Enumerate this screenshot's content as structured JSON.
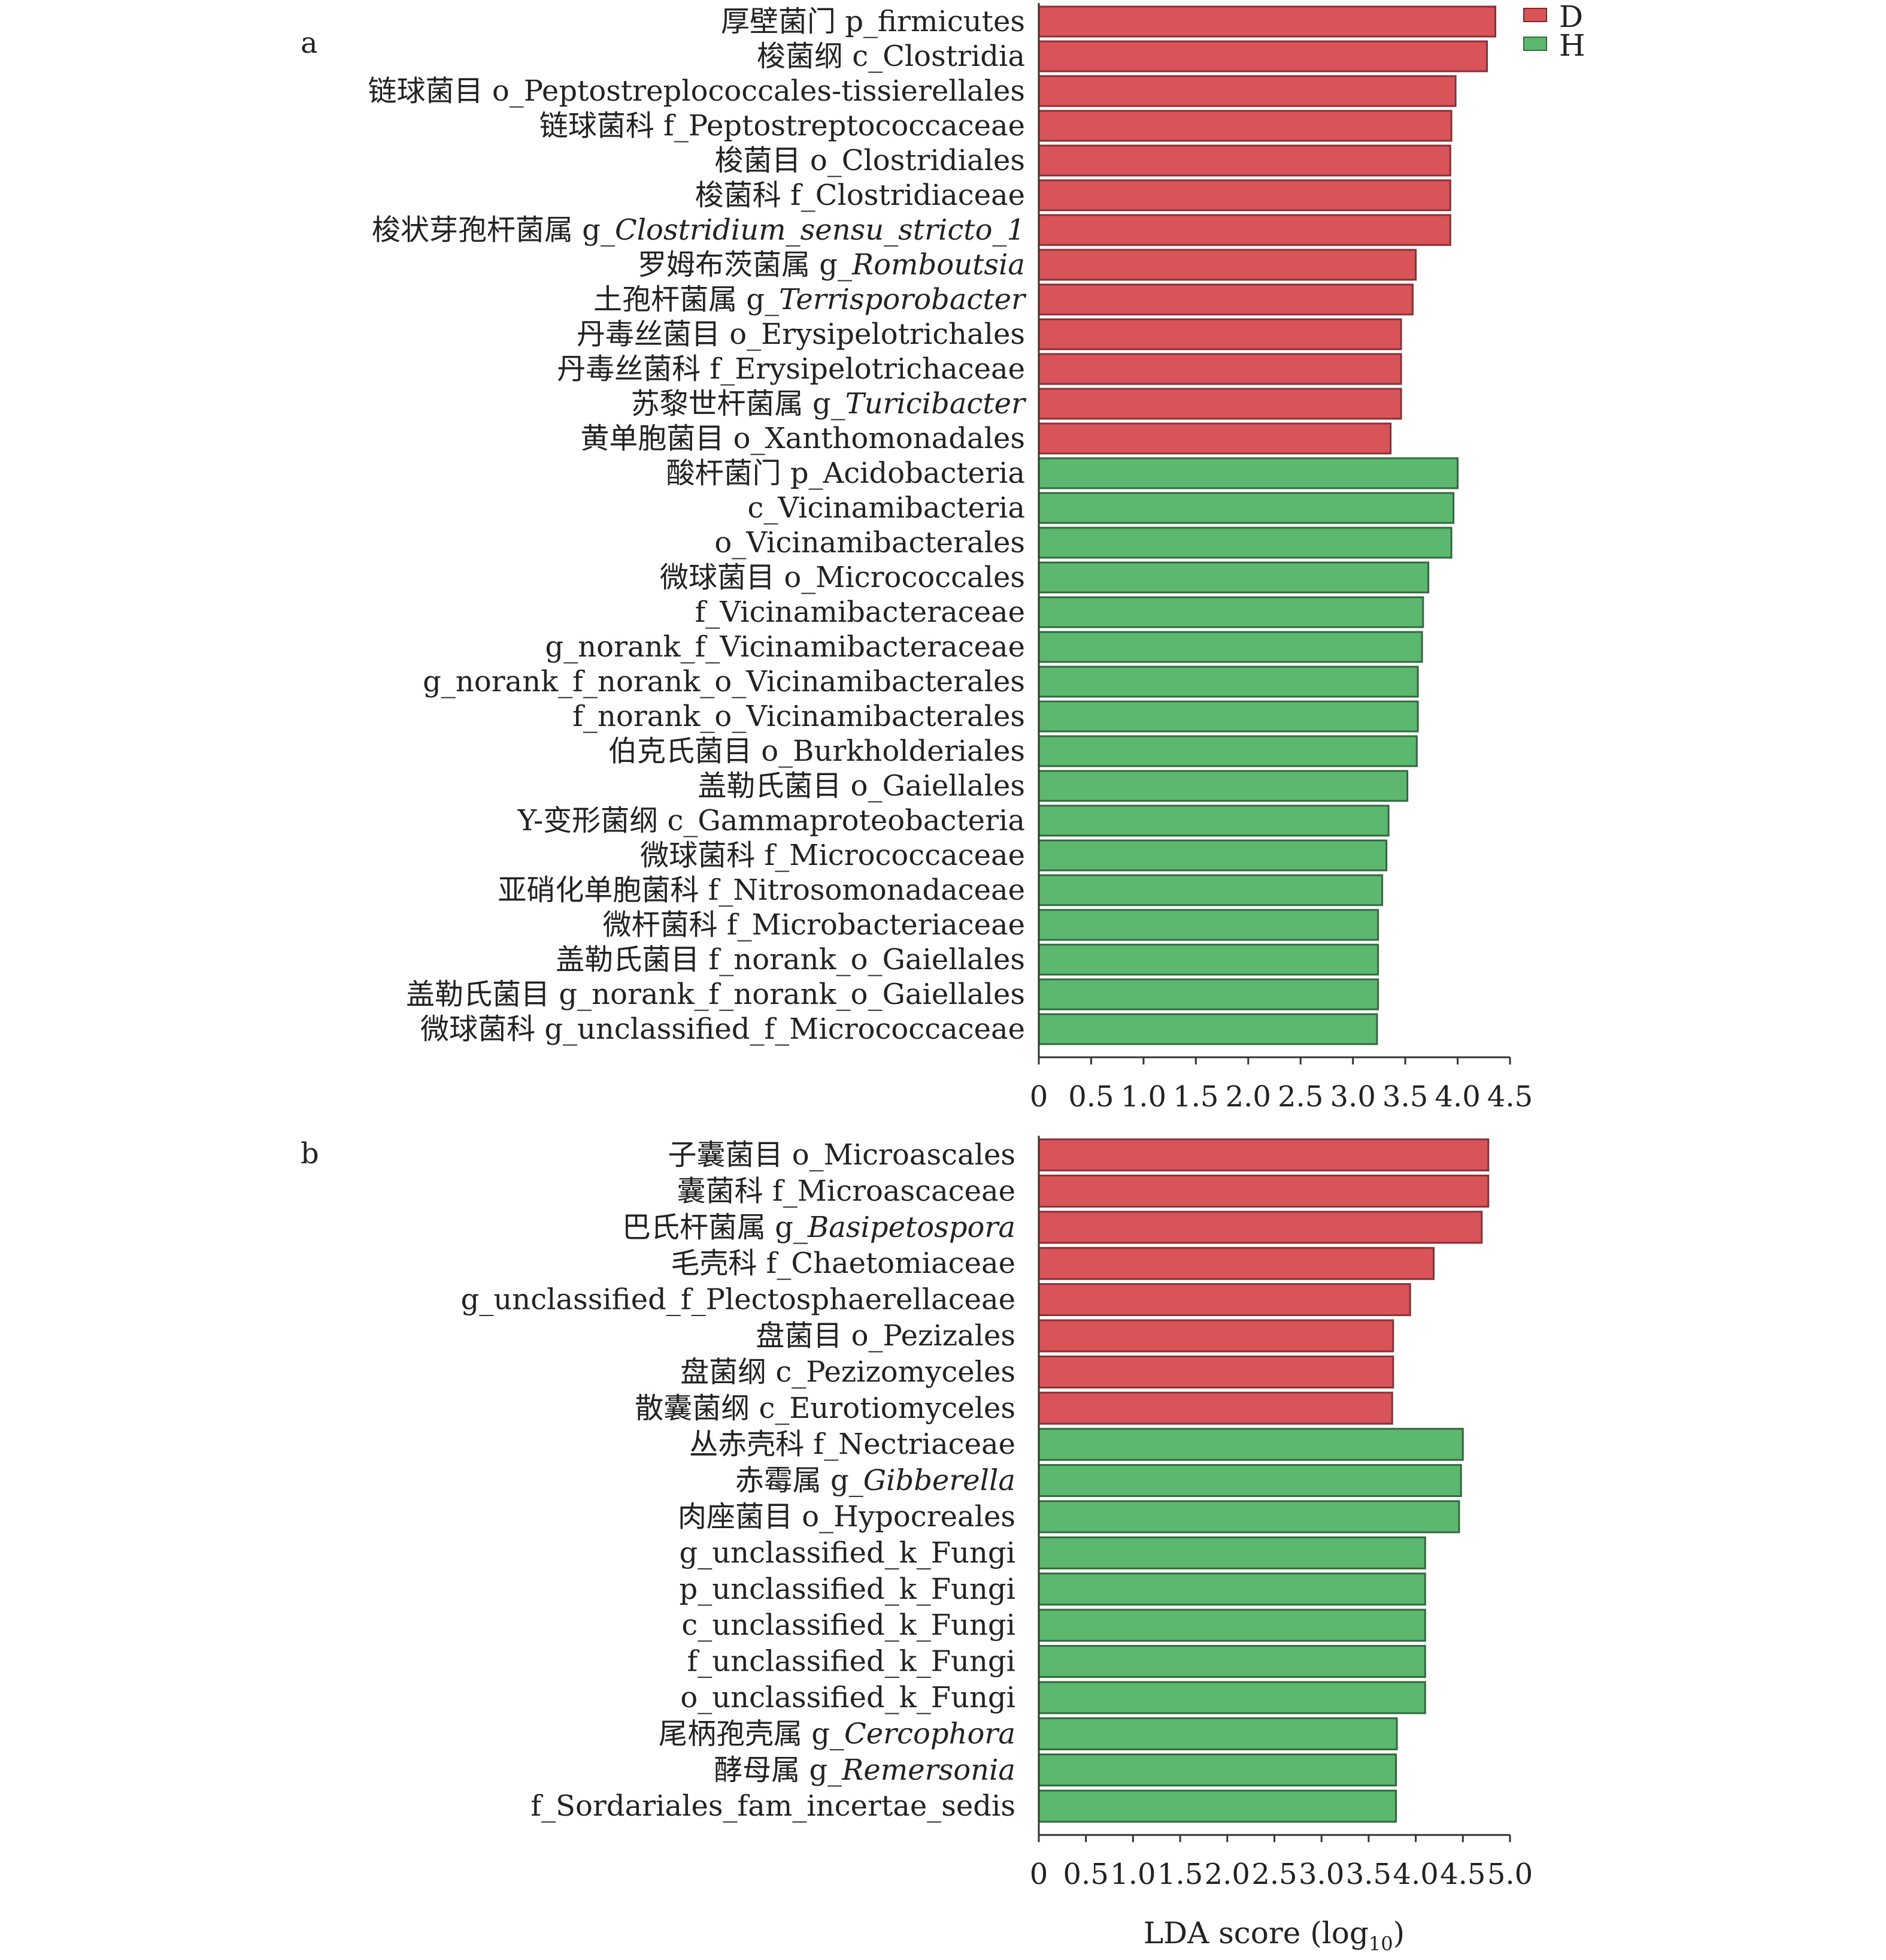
{
  "chart_data": [
    {
      "panel": "a",
      "type": "bar",
      "orientation": "horizontal",
      "xlabel": "",
      "xlim": [
        0,
        4.5
      ],
      "xticks": [
        "0",
        "0.5",
        "1.0",
        "1.5",
        "2.0",
        "2.5",
        "3.0",
        "3.5",
        "4.0",
        "4.5"
      ],
      "legend": {
        "position": "top-right",
        "entries": [
          {
            "label": "D",
            "color": "#d95459"
          },
          {
            "label": "H",
            "color": "#5cb86e"
          }
        ]
      },
      "categories": [
        {
          "zh": "厚壁菌门",
          "sci": "p_firmicutes",
          "it": false
        },
        {
          "zh": "梭菌纲",
          "sci": "c_Clostridia",
          "it": false
        },
        {
          "zh": "链球菌目",
          "sci": "o_Peptostreplococcales-tissierellales",
          "it": false
        },
        {
          "zh": "链球菌科",
          "sci": "f_Peptostreptococcaceae",
          "it": false
        },
        {
          "zh": "梭菌目",
          "sci": "o_Clostridiales",
          "it": false
        },
        {
          "zh": "梭菌科",
          "sci": "f_Clostridiaceae",
          "it": false
        },
        {
          "zh": "梭状芽孢杆菌属",
          "sci": "g_",
          "sci_it": "Clostridium_sensu_stricto_1",
          "it": true
        },
        {
          "zh": "罗姆布茨菌属",
          "sci": "g_",
          "sci_it": "Romboutsia",
          "it": true
        },
        {
          "zh": "土孢杆菌属",
          "sci": "g_",
          "sci_it": "Terrisporobacter",
          "it": true
        },
        {
          "zh": "丹毒丝菌目",
          "sci": "o_Erysipelotrichales",
          "it": false
        },
        {
          "zh": "丹毒丝菌科",
          "sci": "f_Erysipelotrichaceae",
          "it": false
        },
        {
          "zh": "苏黎世杆菌属",
          "sci": "g_",
          "sci_it": "Turicibacter",
          "it": true
        },
        {
          "zh": "黄单胞菌目",
          "sci": "o_Xanthomonadales",
          "it": false
        },
        {
          "zh": "酸杆菌门",
          "sci": "p_Acidobacteria",
          "it": false
        },
        {
          "zh": "",
          "sci": "c_Vicinamibacteria",
          "it": false
        },
        {
          "zh": "",
          "sci": "o_Vicinamibacterales",
          "it": false
        },
        {
          "zh": "微球菌目",
          "sci": "o_Micrococcales",
          "it": false
        },
        {
          "zh": "",
          "sci": "f_Vicinamibacteraceae",
          "it": false
        },
        {
          "zh": "",
          "sci": "g_norank_f_Vicinamibacteraceae",
          "it": false
        },
        {
          "zh": "",
          "sci": "g_norank_f_norank_o_Vicinamibacterales",
          "it": false
        },
        {
          "zh": "",
          "sci": "f_norank_o_Vicinamibacterales",
          "it": false
        },
        {
          "zh": "伯克氏菌目",
          "sci": "o_Burkholderiales",
          "it": false
        },
        {
          "zh": "盖勒氏菌目",
          "sci": "o_Gaiellales",
          "it": false
        },
        {
          "zh": "Y-变形菌纲",
          "sci": "c_Gammaproteobacteria",
          "it": false
        },
        {
          "zh": "微球菌科",
          "sci": "f_Micrococcaceae",
          "it": false
        },
        {
          "zh": "亚硝化单胞菌科",
          "sci": "f_Nitrosomonadaceae",
          "it": false
        },
        {
          "zh": "微杆菌科",
          "sci": "f_Microbacteriaceae",
          "it": false
        },
        {
          "zh": "盖勒氏菌目",
          "sci": "f_norank_o_Gaiellales",
          "it": false
        },
        {
          "zh": "盖勒氏菌目",
          "sci": "g_norank_f_norank_o_Gaiellales",
          "it": false
        },
        {
          "zh": "微球菌科",
          "sci": "g_unclassified_f_Micrococcaceae",
          "it": false
        }
      ],
      "values": [
        4.36,
        4.28,
        3.98,
        3.94,
        3.93,
        3.93,
        3.93,
        3.6,
        3.57,
        3.46,
        3.46,
        3.46,
        3.36,
        4.0,
        3.96,
        3.94,
        3.72,
        3.67,
        3.66,
        3.62,
        3.62,
        3.61,
        3.52,
        3.34,
        3.32,
        3.28,
        3.24,
        3.24,
        3.24,
        3.23
      ],
      "groups": [
        "D",
        "D",
        "D",
        "D",
        "D",
        "D",
        "D",
        "D",
        "D",
        "D",
        "D",
        "D",
        "D",
        "H",
        "H",
        "H",
        "H",
        "H",
        "H",
        "H",
        "H",
        "H",
        "H",
        "H",
        "H",
        "H",
        "H",
        "H",
        "H",
        "H"
      ]
    },
    {
      "panel": "b",
      "type": "bar",
      "orientation": "horizontal",
      "xlabel": "LDA score (log",
      "xlabel_sub": "10",
      "xlabel_end": ")",
      "xlim": [
        0,
        5.0
      ],
      "xticks": [
        "0",
        "0.5",
        "1.0",
        "1.5",
        "2.0",
        "2.5",
        "3.0",
        "3.5",
        "4.0",
        "4.5",
        "5.0"
      ],
      "categories": [
        {
          "zh": "子囊菌目",
          "sci": "o_Microascales",
          "it": false
        },
        {
          "zh": "囊菌科",
          "sci": "f_Microascaceae",
          "it": false
        },
        {
          "zh": "巴氏杆菌属",
          "sci": "g_",
          "sci_it": "Basipetospora",
          "it": true
        },
        {
          "zh": "毛壳科",
          "sci": "f_Chaetomiaceae",
          "it": false
        },
        {
          "zh": "",
          "sci": "g_unclassified_f_Plectosphaerellaceae",
          "it": false
        },
        {
          "zh": "盘菌目",
          "sci": "o_Pezizales",
          "it": false
        },
        {
          "zh": "盘菌纲",
          "sci": "c_Pezizomyceles",
          "it": false
        },
        {
          "zh": "散囊菌纲",
          "sci": "c_Eurotiomyceles",
          "it": false
        },
        {
          "zh": "丛赤壳科",
          "sci": "f_Nectriaceae",
          "it": false
        },
        {
          "zh": "赤霉属",
          "sci": "g_",
          "sci_it": "Gibberella",
          "it": true
        },
        {
          "zh": "肉座菌目",
          "sci": "o_Hypocreales",
          "it": false
        },
        {
          "zh": "",
          "sci": "g_unclassified_k_Fungi",
          "it": false
        },
        {
          "zh": "",
          "sci": "p_unclassified_k_Fungi",
          "it": false
        },
        {
          "zh": "",
          "sci": "c_unclassified_k_Fungi",
          "it": false
        },
        {
          "zh": "",
          "sci": "f_unclassified_k_Fungi",
          "it": false
        },
        {
          "zh": "",
          "sci": "o_unclassified_k_Fungi",
          "it": false
        },
        {
          "zh": "尾柄孢壳属",
          "sci": "g_",
          "sci_it": "Cercophora",
          "it": true
        },
        {
          "zh": "酵母属",
          "sci": "g_",
          "sci_it": "Remersonia",
          "it": true
        },
        {
          "zh": "",
          "sci": "f_Sordariales_fam_incertae_sedis",
          "it": false
        }
      ],
      "values": [
        4.77,
        4.77,
        4.7,
        4.19,
        3.94,
        3.76,
        3.76,
        3.75,
        4.5,
        4.48,
        4.46,
        4.1,
        4.1,
        4.1,
        4.1,
        4.1,
        3.8,
        3.79,
        3.79
      ],
      "groups": [
        "D",
        "D",
        "D",
        "D",
        "D",
        "D",
        "D",
        "D",
        "H",
        "H",
        "H",
        "H",
        "H",
        "H",
        "H",
        "H",
        "H",
        "H",
        "H"
      ]
    }
  ]
}
